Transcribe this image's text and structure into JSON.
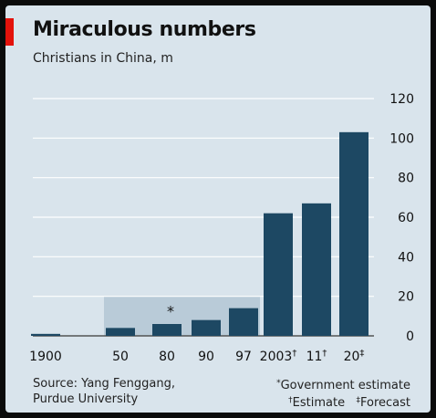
{
  "title": "Miraculous numbers",
  "subtitle": "Christians in China, m",
  "source": {
    "line1": "Source: Yang Fenggang,",
    "line2": "Purdue University"
  },
  "notes": [
    {
      "symbol": "*",
      "text": "Government estimate"
    },
    {
      "symbol": "†",
      "text": "Estimate"
    },
    {
      "symbol": "‡",
      "text": "Forecast"
    }
  ],
  "colors": {
    "bar": "#1d4863",
    "shade": "#b9cbd8",
    "grid": "#ffffff",
    "accent": "#e3120b",
    "background": "#d9e4ec"
  },
  "chart_data": {
    "type": "bar",
    "categories": [
      "1900",
      "50",
      "80",
      "90",
      "97",
      "2003†",
      "11†",
      "20‡"
    ],
    "values": [
      1,
      4,
      6,
      8,
      14,
      62,
      67,
      103
    ],
    "ylim": [
      0,
      120
    ],
    "yticks": [
      0,
      20,
      40,
      60,
      80,
      100,
      120
    ],
    "grid": true,
    "y_axis_side": "right",
    "highlight": {
      "from_category": "50",
      "to_category": "97",
      "value": 20,
      "marker": "*"
    }
  }
}
